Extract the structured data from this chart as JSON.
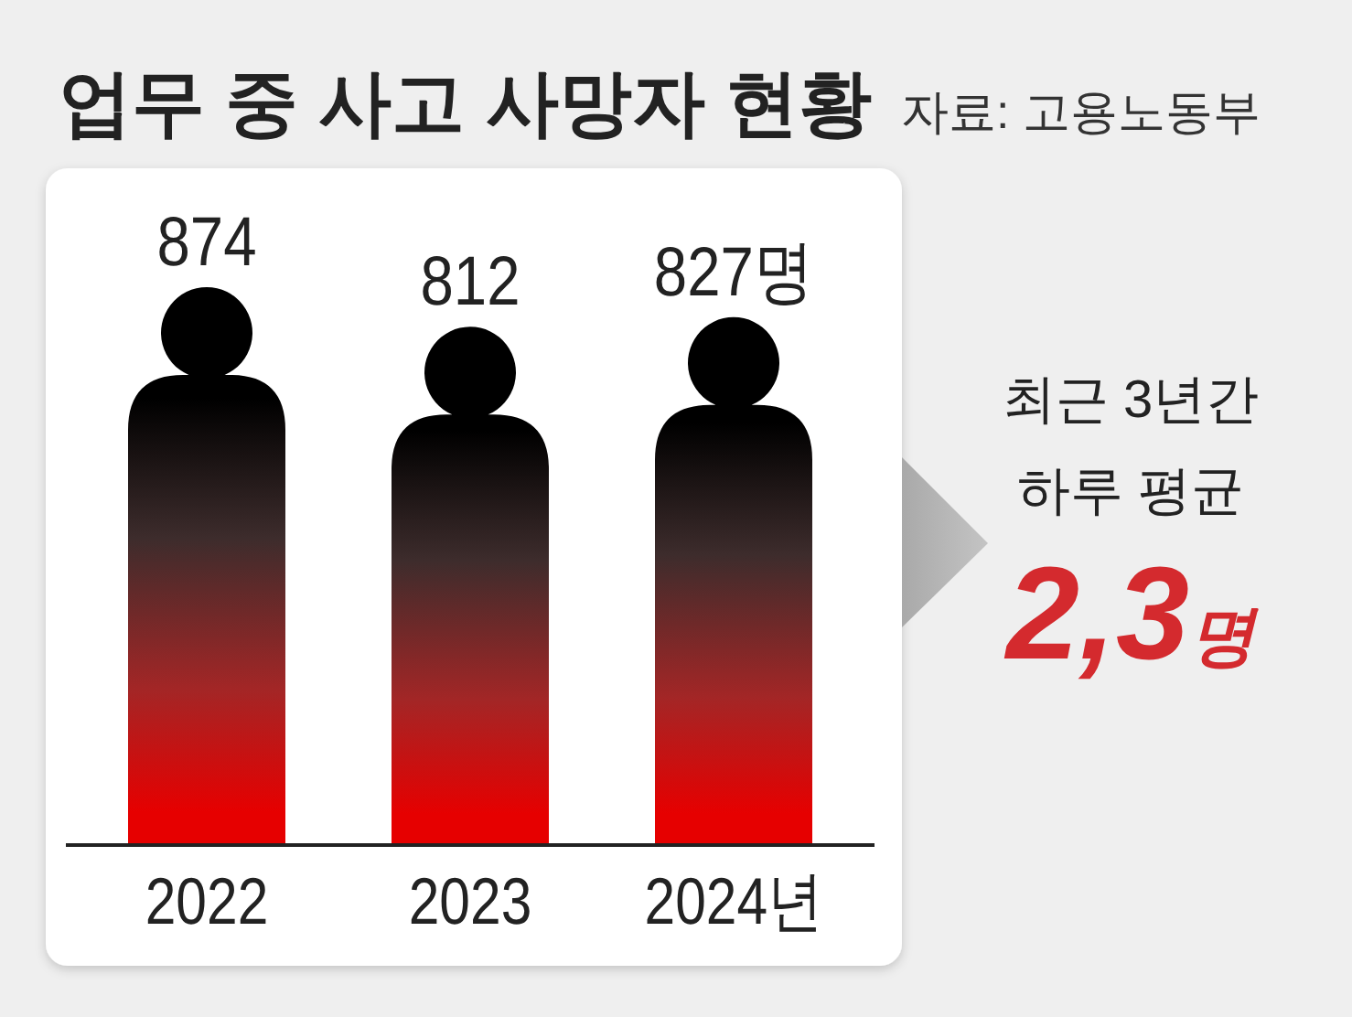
{
  "chart_data": {
    "type": "bar",
    "title": "업무 중 사고 사망자 현황",
    "categories": [
      "2022",
      "2023",
      "2024년"
    ],
    "values": [
      874,
      812,
      827
    ],
    "value_labels": [
      "874",
      "812",
      "827명"
    ],
    "color": "#e60000",
    "annotations": [
      "자료: 고용노동부",
      "최근 3년간",
      "하루 평균",
      "2,3명"
    ]
  }
}
